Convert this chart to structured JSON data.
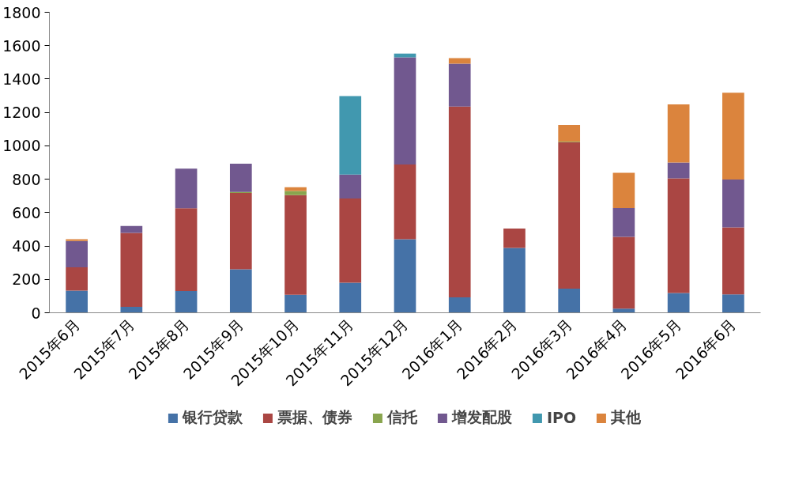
{
  "chart_data": {
    "type": "bar",
    "stacked": true,
    "categories": [
      "2015年6月",
      "2015年7月",
      "2015年8月",
      "2015年9月",
      "2015年10月",
      "2015年11月",
      "2015年12月",
      "2016年1月",
      "2016年2月",
      "2016年3月",
      "2016年4月",
      "2016年5月",
      "2016年6月"
    ],
    "series": [
      {
        "name": "银行贷款",
        "color": "#4572a7",
        "values": [
          133,
          35,
          130,
          260,
          108,
          180,
          440,
          92,
          388,
          145,
          25,
          118,
          110
        ]
      },
      {
        "name": "票据、债券",
        "color": "#aa4643",
        "values": [
          139,
          443,
          497,
          458,
          597,
          505,
          448,
          1143,
          117,
          877,
          430,
          687,
          402
        ]
      },
      {
        "name": "信托",
        "color": "#89a54e",
        "values": [
          0,
          0,
          0,
          5,
          25,
          0,
          0,
          0,
          0,
          3,
          0,
          0,
          0
        ]
      },
      {
        "name": "增发配股",
        "color": "#71588f",
        "values": [
          158,
          42,
          236,
          170,
          0,
          143,
          642,
          257,
          0,
          0,
          173,
          95,
          286
        ]
      },
      {
        "name": "IPO",
        "color": "#4198af",
        "values": [
          0,
          0,
          0,
          0,
          0,
          470,
          22,
          0,
          0,
          0,
          0,
          0,
          0
        ]
      },
      {
        "name": "其他",
        "color": "#db843d",
        "values": [
          10,
          0,
          0,
          0,
          22,
          0,
          0,
          33,
          0,
          100,
          210,
          348,
          520
        ]
      }
    ],
    "ylim": [
      0,
      1800
    ],
    "yticks": [
      0,
      200,
      400,
      600,
      800,
      1000,
      1200,
      1400,
      1600,
      1800
    ],
    "grid": false,
    "legend": "bottom"
  }
}
